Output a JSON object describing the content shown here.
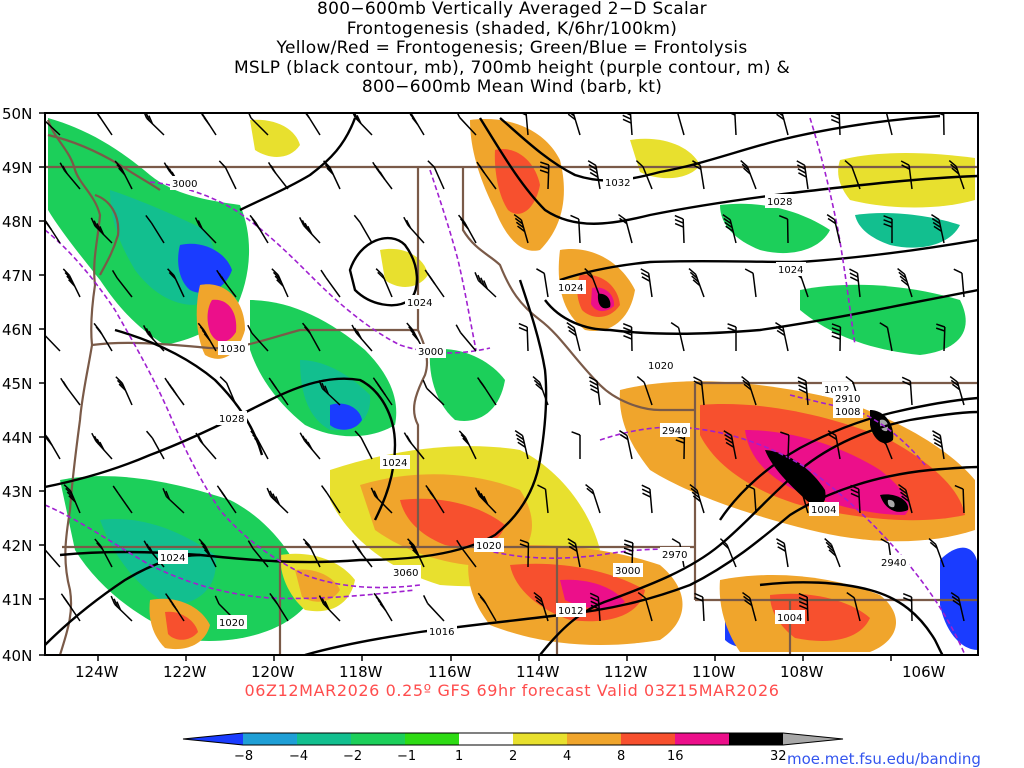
{
  "title": {
    "lines": [
      "800−600mb Vertically Averaged 2−D Scalar",
      "Frontogenesis (shaded, K/6hr/100km)",
      "Yellow/Red = Frontogenesis;  Green/Blue = Frontolysis",
      "MSLP (black contour, mb), 700mb height (purple contour, m) &",
      "800−600mb Mean Wind (barb, kt)"
    ]
  },
  "axes": {
    "lat_labels": [
      "50N",
      "49N",
      "48N",
      "47N",
      "46N",
      "45N",
      "44N",
      "43N",
      "42N",
      "41N",
      "40N"
    ],
    "lon_labels": [
      "124W",
      "122W",
      "120W",
      "118W",
      "116W",
      "114W",
      "112W",
      "110W",
      "108W",
      "106W"
    ]
  },
  "mslp_labels": [
    "1032",
    "1028",
    "1024",
    "1024",
    "1024",
    "1024",
    "1020",
    "1012",
    "1008",
    "1004",
    "1004",
    "1016",
    "1012",
    "1020",
    "1024",
    "1020",
    "1028",
    "1030"
  ],
  "height_labels": [
    "3000",
    "3000",
    "2910",
    "2940",
    "2970",
    "3000",
    "3060",
    "2940"
  ],
  "footer": "06Z12MAR2026  0.25º  GFS  69hr  forecast  Valid  03Z15MAR2026",
  "colorbar": {
    "labels": [
      "−8",
      "−4",
      "−2",
      "−1",
      "1",
      "2",
      "4",
      "8",
      "16",
      "32"
    ],
    "colors": [
      "#1a3cff",
      "#1f9fd6",
      "#12bf8f",
      "#1ccf5a",
      "#2edb14",
      "#ffffff",
      "#e8e02e",
      "#f0a52c",
      "#f7502e",
      "#ec0f8a",
      "#000000",
      "#a8a8a8"
    ]
  },
  "credit": "moe.met.fsu.edu/banding",
  "colors": {
    "state_border": "#7a5a48",
    "mslp": "#000000",
    "height": "#a020d0",
    "barb": "#000000"
  }
}
